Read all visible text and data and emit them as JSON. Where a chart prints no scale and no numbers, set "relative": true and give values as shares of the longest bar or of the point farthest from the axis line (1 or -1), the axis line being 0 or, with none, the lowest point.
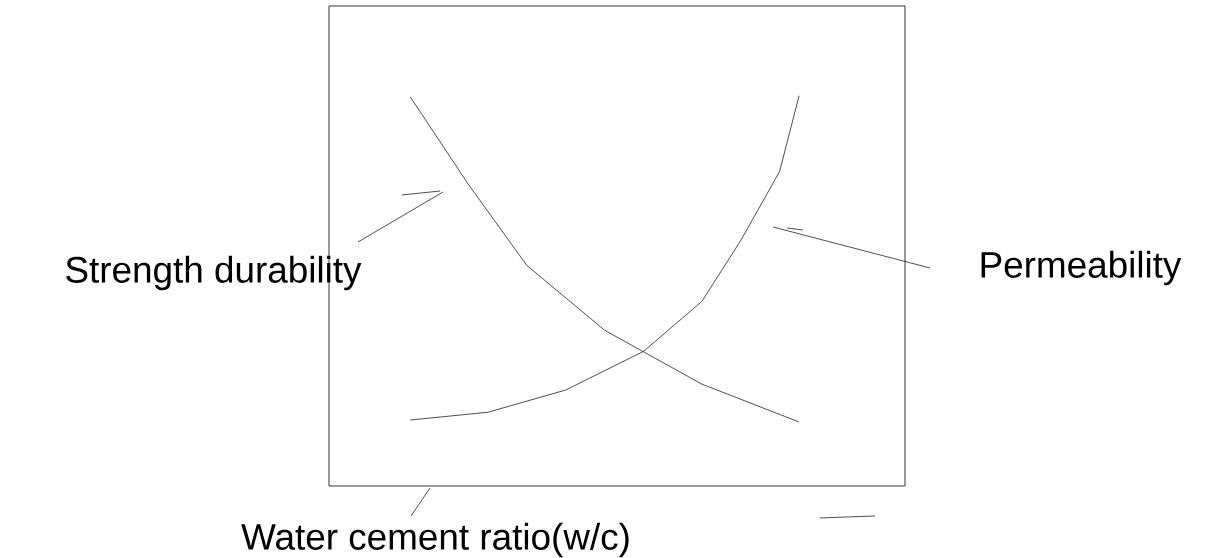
{
  "chart_data": {
    "type": "line",
    "relative": true,
    "xlabel": "Water cement ratio(w/c)",
    "categories": [
      null,
      null,
      null,
      null,
      null,
      null,
      null,
      null,
      null,
      null,
      null,
      null,
      null,
      null,
      null,
      null,
      null,
      null,
      null,
      null,
      null
    ],
    "series": [
      {
        "name": "Strength durability",
        "color": "#000000",
        "values": [
          0.997,
          null,
          null,
          0.772,
          null,
          null,
          0.565,
          null,
          null,
          null,
          0.399,
          null,
          null,
          null,
          null,
          0.261,
          null,
          null,
          null,
          null,
          0.164
        ]
      },
      {
        "name": "Permeability",
        "color": "#000000",
        "values": [
          0.169,
          null,
          null,
          null,
          0.189,
          null,
          null,
          null,
          0.246,
          null,
          null,
          null,
          0.345,
          null,
          null,
          0.473,
          null,
          0.629,
          null,
          0.806,
          1.0
        ]
      }
    ]
  }
}
